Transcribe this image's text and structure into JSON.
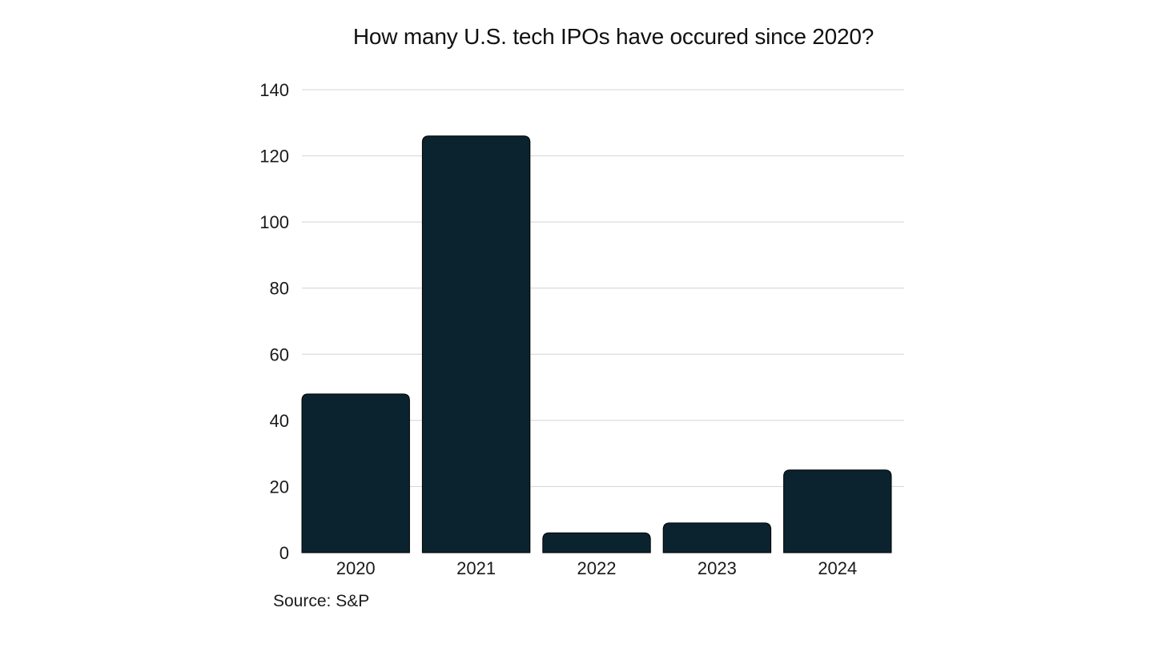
{
  "chart_data": {
    "type": "bar",
    "title": "How many U.S. tech IPOs have occured since 2020?",
    "categories": [
      "2020",
      "2021",
      "2022",
      "2023",
      "2024"
    ],
    "values": [
      48,
      126,
      6,
      9,
      25
    ],
    "xlabel": "",
    "ylabel": "",
    "ylim": [
      0,
      140
    ],
    "yticks": [
      0,
      20,
      40,
      60,
      80,
      100,
      120,
      140
    ],
    "grid": true,
    "bar_color": "#0b232e",
    "grid_color": "#d4d4d4",
    "source": "Source: S&P"
  }
}
